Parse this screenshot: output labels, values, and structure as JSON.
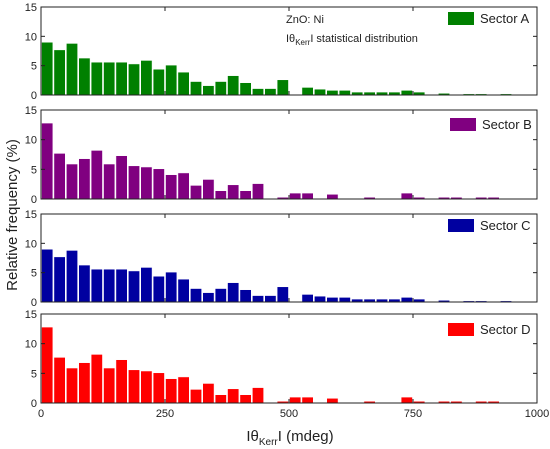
{
  "chart_data": {
    "type": "bar",
    "annotation": {
      "line1": "ZnO: Ni",
      "line2_pre": "Iθ",
      "line2_sub": "Kerr",
      "line2_post": "I statistical distribution"
    },
    "xlabel": {
      "pre": "Iθ",
      "sub": "Kerr",
      "post": "I (mdeg)"
    },
    "ylabel": "Relative frequency (%)",
    "xlim": [
      0,
      1000
    ],
    "xticks": [
      0,
      250,
      500,
      750,
      1000
    ],
    "bin_width": 25,
    "bin_starts": [
      0,
      25,
      50,
      75,
      100,
      125,
      150,
      175,
      200,
      225,
      250,
      275,
      300,
      325,
      350,
      375,
      400,
      425,
      450,
      475,
      500,
      525,
      550,
      575,
      600,
      625,
      650,
      675,
      700,
      725,
      750,
      775,
      800,
      825,
      850,
      875,
      900,
      925,
      950
    ],
    "panels": [
      {
        "name": "Sector A",
        "color": "#008000",
        "ylim": [
          0,
          15
        ],
        "yticks": [
          0,
          5,
          10,
          15
        ],
        "values": [
          9,
          7.7,
          8.8,
          6.3,
          5.6,
          5.6,
          5.6,
          5.3,
          5.9,
          4.4,
          5.1,
          3.9,
          2.3,
          1.6,
          2.3,
          3.3,
          2.1,
          1.1,
          1.1,
          2.6,
          0,
          1.3,
          1.0,
          0.8,
          0.8,
          0.5,
          0.5,
          0.5,
          0.5,
          0.8,
          0.5,
          0,
          0.3,
          0,
          0.2,
          0.2,
          0,
          0.2,
          0
        ]
      },
      {
        "name": "Sector B",
        "color": "#800080",
        "ylim": [
          0,
          15
        ],
        "yticks": [
          0,
          5,
          10,
          15
        ],
        "values": [
          12.8,
          7.7,
          5.9,
          6.8,
          8.2,
          5.9,
          7.3,
          5.6,
          5.4,
          5.1,
          4.1,
          4.4,
          2.3,
          3.3,
          1.4,
          2.4,
          1.4,
          2.6,
          0,
          0.3,
          1.0,
          1.0,
          0,
          0.8,
          0,
          0,
          0.3,
          0,
          0,
          1.0,
          0.3,
          0,
          0.3,
          0.3,
          0,
          0.3,
          0.3,
          0,
          0
        ]
      },
      {
        "name": "Sector C",
        "color": "#0000a0",
        "ylim": [
          0,
          15
        ],
        "yticks": [
          0,
          5,
          10,
          15
        ],
        "values": [
          9,
          7.7,
          8.8,
          6.3,
          5.6,
          5.6,
          5.6,
          5.3,
          5.9,
          4.4,
          5.1,
          3.9,
          2.3,
          1.6,
          2.3,
          3.3,
          2.1,
          1.1,
          1.1,
          2.6,
          0,
          1.3,
          1.0,
          0.8,
          0.8,
          0.5,
          0.5,
          0.5,
          0.5,
          0.8,
          0.5,
          0,
          0.3,
          0,
          0.2,
          0.2,
          0,
          0.2,
          0
        ]
      },
      {
        "name": "Sector D",
        "color": "#ff0000",
        "ylim": [
          0,
          15
        ],
        "yticks": [
          0,
          5,
          10,
          15
        ],
        "values": [
          12.8,
          7.7,
          5.9,
          6.8,
          8.2,
          5.9,
          7.3,
          5.6,
          5.4,
          5.1,
          4.1,
          4.4,
          2.3,
          3.3,
          1.4,
          2.4,
          1.4,
          2.6,
          0,
          0.3,
          1.0,
          1.0,
          0,
          0.8,
          0,
          0,
          0.3,
          0,
          0,
          1.0,
          0.3,
          0,
          0.3,
          0.3,
          0,
          0.3,
          0.3,
          0,
          0
        ]
      }
    ]
  }
}
